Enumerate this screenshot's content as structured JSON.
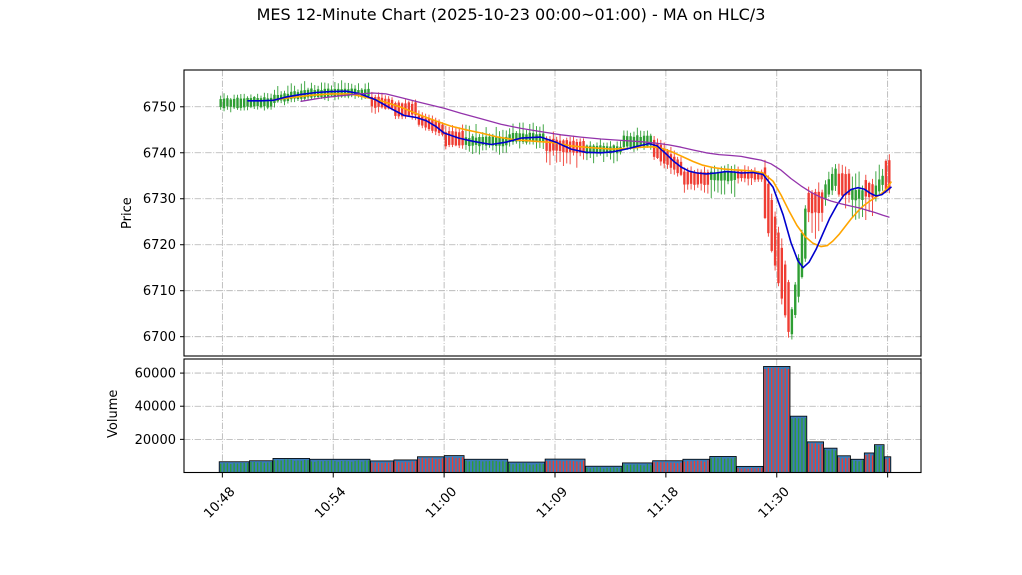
{
  "title": "MES 12-Minute Chart (2025-10-23 00:00~01:00) - MA on HLC/3",
  "chart_data": {
    "type": "candlestick+volume",
    "grid": "dash-dot gray, both panels",
    "legend": "none",
    "colors": {
      "up": "#2e9e33",
      "down": "#ef3d33",
      "volume_bar": "#3c7cb8",
      "ma_fast": "#0000cd",
      "ma_mid": "#ffa500",
      "ma_slow": "#9333ab",
      "grid": "#b0b0b0"
    },
    "x_axis": {
      "total_candles": 200,
      "tick_indices": [
        1,
        34,
        67,
        100,
        133,
        166,
        199
      ],
      "tick_labels": [
        "10:48",
        "10:54",
        "11:00",
        "11:09",
        "11:18",
        "11:30",
        ""
      ]
    },
    "price_axis": {
      "label": "Price",
      "ticks": [
        6700,
        6710,
        6720,
        6730,
        6740,
        6750
      ],
      "min": 6695.8,
      "max": 6758.0
    },
    "volume_axis": {
      "label": "Volume",
      "ticks": [
        20000,
        40000,
        60000
      ],
      "min": 0,
      "max": 68500
    },
    "candle_groups_fields": [
      "start_index",
      "end_index",
      "direction",
      "body_top_start",
      "body_top_end",
      "body_bottom_start",
      "body_bottom_end",
      "high",
      "low",
      "volume"
    ],
    "candle_groups": [
      [
        0,
        9,
        "up",
        6751.8,
        6751.8,
        6749.9,
        6749.9,
        6753.0,
        6748.6,
        6500
      ],
      [
        9,
        16,
        "up",
        6752.0,
        6752.0,
        6750.0,
        6750.0,
        6753.2,
        6749.0,
        7100
      ],
      [
        16,
        27,
        "up",
        6752.6,
        6753.6,
        6751.0,
        6752.0,
        6755.6,
        6750.0,
        8500
      ],
      [
        27,
        45,
        "up",
        6753.8,
        6753.8,
        6752.2,
        6752.4,
        6755.8,
        6751.2,
        8000
      ],
      [
        45,
        52,
        "down",
        6752.2,
        6751.6,
        6750.0,
        6749.6,
        6753.4,
        6748.2,
        7000
      ],
      [
        52,
        59,
        "down",
        6750.8,
        6750.8,
        6747.9,
        6748.2,
        6752.0,
        6746.6,
        7600
      ],
      [
        59,
        67,
        "down",
        6748.2,
        6746.2,
        6746.2,
        6743.8,
        6749.4,
        6743.0,
        9500
      ],
      [
        67,
        73,
        "down",
        6744.6,
        6744.6,
        6741.6,
        6741.6,
        6746.2,
        6740.6,
        10200
      ],
      [
        73,
        86,
        "up",
        6743.4,
        6743.4,
        6741.6,
        6741.6,
        6746.4,
        6739.2,
        8000
      ],
      [
        86,
        97,
        "up",
        6744.2,
        6744.2,
        6742.4,
        6742.4,
        6746.6,
        6740.8,
        6300
      ],
      [
        97,
        109,
        "down",
        6743.0,
        6742.4,
        6740.4,
        6740.0,
        6744.6,
        6736.8,
        8100
      ],
      [
        109,
        120,
        "up",
        6741.6,
        6741.4,
        6740.0,
        6740.0,
        6743.0,
        6737.6,
        3800
      ],
      [
        120,
        129,
        "up",
        6743.6,
        6743.6,
        6741.2,
        6741.4,
        6746.2,
        6740.0,
        5800
      ],
      [
        129,
        138,
        "down",
        6742.8,
        6738.0,
        6739.2,
        6735.2,
        6744.4,
        6733.8,
        7100
      ],
      [
        138,
        146,
        "down",
        6735.8,
        6735.8,
        6733.2,
        6733.2,
        6737.2,
        6731.2,
        8000
      ],
      [
        146,
        154,
        "up",
        6735.8,
        6735.8,
        6734.0,
        6734.0,
        6737.8,
        6729.8,
        9700
      ],
      [
        154,
        162,
        "down",
        6736.0,
        6735.8,
        6734.4,
        6734.2,
        6737.6,
        6732.6,
        3700
      ],
      [
        162,
        170,
        "down",
        6737.0,
        6712.0,
        6726.0,
        6701.0,
        6739.2,
        6699.6,
        64000
      ],
      [
        170,
        175,
        "up",
        6706.0,
        6728.0,
        6700.6,
        6717.0,
        6729.6,
        6699.2,
        34000
      ],
      [
        175,
        180,
        "down",
        6731.4,
        6731.4,
        6727.0,
        6727.0,
        6733.6,
        6719.6,
        18500
      ],
      [
        180,
        184,
        "up",
        6733.0,
        6736.4,
        6730.0,
        6733.0,
        6739.0,
        6727.4,
        14700
      ],
      [
        184,
        188,
        "down",
        6735.4,
        6735.4,
        6730.8,
        6730.8,
        6737.6,
        6727.6,
        10100
      ],
      [
        188,
        192,
        "up",
        6732.0,
        6732.0,
        6729.8,
        6729.8,
        6736.6,
        6723.0,
        8000
      ],
      [
        192,
        195,
        "down",
        6734.2,
        6733.0,
        6730.4,
        6730.4,
        6736.0,
        6722.8,
        11800
      ],
      [
        195,
        198,
        "up",
        6733.0,
        6735.0,
        6730.6,
        6733.0,
        6740.6,
        6728.0,
        16800
      ],
      [
        198,
        200,
        "down",
        6738.4,
        6738.4,
        6732.0,
        6732.0,
        6740.0,
        6731.0,
        9500
      ]
    ],
    "ma_lines": [
      {
        "name": "ma-fast",
        "color": "#0000cd",
        "points": [
          [
            8.6,
            6751.3
          ],
          [
            12.5,
            6751.3
          ],
          [
            16.1,
            6751.4
          ],
          [
            19.9,
            6752.1
          ],
          [
            24.4,
            6752.7
          ],
          [
            28.9,
            6753.1
          ],
          [
            33.3,
            6753.3
          ],
          [
            37.8,
            6753.4
          ],
          [
            41.7,
            6752.9
          ],
          [
            46.7,
            6751.5
          ],
          [
            51.2,
            6749.6
          ],
          [
            55.1,
            6748.1
          ],
          [
            58.6,
            6747.7
          ],
          [
            61.6,
            6747.0
          ],
          [
            64.6,
            6745.7
          ],
          [
            67.0,
            6744.3
          ],
          [
            71.4,
            6743.2
          ],
          [
            75.6,
            6742.5
          ],
          [
            81.0,
            6741.8
          ],
          [
            85.4,
            6742.3
          ],
          [
            89.9,
            6743.2
          ],
          [
            95.8,
            6743.4
          ],
          [
            100.3,
            6742.3
          ],
          [
            104.8,
            6740.8
          ],
          [
            109.2,
            6740.1
          ],
          [
            113.7,
            6740.0
          ],
          [
            117.3,
            6740.2
          ],
          [
            121.1,
            6740.8
          ],
          [
            125.0,
            6741.5
          ],
          [
            128.0,
            6742.0
          ],
          [
            130.4,
            6741.5
          ],
          [
            132.7,
            6740.0
          ],
          [
            135.1,
            6738.3
          ],
          [
            137.5,
            6736.9
          ],
          [
            139.9,
            6736.0
          ],
          [
            142.3,
            6735.6
          ],
          [
            145.0,
            6735.4
          ],
          [
            147.9,
            6735.6
          ],
          [
            150.9,
            6735.9
          ],
          [
            153.3,
            6735.8
          ],
          [
            155.4,
            6735.6
          ],
          [
            158.9,
            6735.7
          ],
          [
            161.9,
            6735.3
          ],
          [
            164.9,
            6732.5
          ],
          [
            167.9,
            6726.5
          ],
          [
            170.2,
            6720.5
          ],
          [
            172.3,
            6716.5
          ],
          [
            173.8,
            6715.0
          ],
          [
            175.6,
            6716.2
          ],
          [
            177.7,
            6719.0
          ],
          [
            179.8,
            6722.5
          ],
          [
            181.8,
            6725.8
          ],
          [
            183.9,
            6728.6
          ],
          [
            186.0,
            6730.8
          ],
          [
            188.1,
            6732.0
          ],
          [
            190.2,
            6732.4
          ],
          [
            192.0,
            6732.1
          ],
          [
            193.8,
            6731.2
          ],
          [
            195.5,
            6730.6
          ],
          [
            197.3,
            6730.9
          ],
          [
            198.8,
            6731.8
          ],
          [
            200.0,
            6732.5
          ]
        ]
      },
      {
        "name": "ma-mid",
        "color": "#ffa500",
        "points": [
          [
            16.1,
            6751.5
          ],
          [
            21.4,
            6752.0
          ],
          [
            27.4,
            6752.5
          ],
          [
            33.3,
            6752.8
          ],
          [
            38.7,
            6752.8
          ],
          [
            42.3,
            6752.3
          ],
          [
            48.2,
            6751.3
          ],
          [
            54.2,
            6749.9
          ],
          [
            59.5,
            6748.3
          ],
          [
            64.6,
            6746.9
          ],
          [
            69.0,
            6745.8
          ],
          [
            73.5,
            6745.0
          ],
          [
            78.0,
            6744.3
          ],
          [
            83.0,
            6743.4
          ],
          [
            88.4,
            6742.8
          ],
          [
            94.3,
            6742.5
          ],
          [
            99.4,
            6742.2
          ],
          [
            104.8,
            6741.5
          ],
          [
            110.7,
            6741.1
          ],
          [
            116.7,
            6740.8
          ],
          [
            121.1,
            6740.9
          ],
          [
            125.6,
            6741.2
          ],
          [
            129.2,
            6741.3
          ],
          [
            132.1,
            6740.9
          ],
          [
            135.1,
            6740.1
          ],
          [
            138.1,
            6739.1
          ],
          [
            141.1,
            6738.1
          ],
          [
            144.0,
            6737.3
          ],
          [
            147.0,
            6736.8
          ],
          [
            150.0,
            6736.5
          ],
          [
            153.0,
            6736.3
          ],
          [
            155.4,
            6736.2
          ],
          [
            158.9,
            6736.0
          ],
          [
            161.9,
            6735.6
          ],
          [
            164.9,
            6733.8
          ],
          [
            167.3,
            6730.8
          ],
          [
            169.6,
            6727.4
          ],
          [
            172.0,
            6724.2
          ],
          [
            174.4,
            6721.8
          ],
          [
            176.8,
            6720.3
          ],
          [
            179.2,
            6719.6
          ],
          [
            181.0,
            6719.8
          ],
          [
            182.7,
            6720.8
          ],
          [
            184.5,
            6722.2
          ],
          [
            186.3,
            6723.9
          ],
          [
            188.1,
            6725.6
          ],
          [
            189.9,
            6727.1
          ],
          [
            191.7,
            6728.4
          ],
          [
            193.5,
            6729.4
          ],
          [
            195.2,
            6730.2
          ],
          [
            197.0,
            6731.0
          ],
          [
            198.5,
            6732.0
          ],
          [
            200.0,
            6733.6
          ]
        ]
      },
      {
        "name": "ma-slow",
        "color": "#9333ab",
        "points": [
          [
            24.4,
            6751.2
          ],
          [
            30.4,
            6751.9
          ],
          [
            36.3,
            6752.4
          ],
          [
            41.7,
            6752.8
          ],
          [
            45.8,
            6753.0
          ],
          [
            49.7,
            6752.8
          ],
          [
            54.2,
            6752.0
          ],
          [
            60.1,
            6750.9
          ],
          [
            67.0,
            6749.7
          ],
          [
            72.0,
            6748.6
          ],
          [
            78.0,
            6747.4
          ],
          [
            83.9,
            6746.2
          ],
          [
            89.9,
            6745.3
          ],
          [
            95.8,
            6744.6
          ],
          [
            101.8,
            6743.9
          ],
          [
            107.7,
            6743.4
          ],
          [
            113.7,
            6743.0
          ],
          [
            119.6,
            6742.7
          ],
          [
            125.6,
            6742.4
          ],
          [
            130.1,
            6742.1
          ],
          [
            133.9,
            6741.7
          ],
          [
            137.5,
            6741.2
          ],
          [
            141.1,
            6740.6
          ],
          [
            145.0,
            6740.0
          ],
          [
            148.8,
            6739.6
          ],
          [
            152.4,
            6739.4
          ],
          [
            155.4,
            6739.2
          ],
          [
            158.3,
            6738.8
          ],
          [
            161.3,
            6738.4
          ],
          [
            164.3,
            6737.6
          ],
          [
            167.3,
            6736.2
          ],
          [
            170.2,
            6734.4
          ],
          [
            173.2,
            6732.8
          ],
          [
            176.2,
            6731.4
          ],
          [
            179.2,
            6730.3
          ],
          [
            182.1,
            6729.5
          ],
          [
            185.1,
            6728.9
          ],
          [
            188.1,
            6728.4
          ],
          [
            190.5,
            6728.0
          ],
          [
            192.9,
            6727.5
          ],
          [
            195.2,
            6727.0
          ],
          [
            197.6,
            6726.4
          ],
          [
            199.4,
            6726.0
          ]
        ]
      }
    ]
  }
}
